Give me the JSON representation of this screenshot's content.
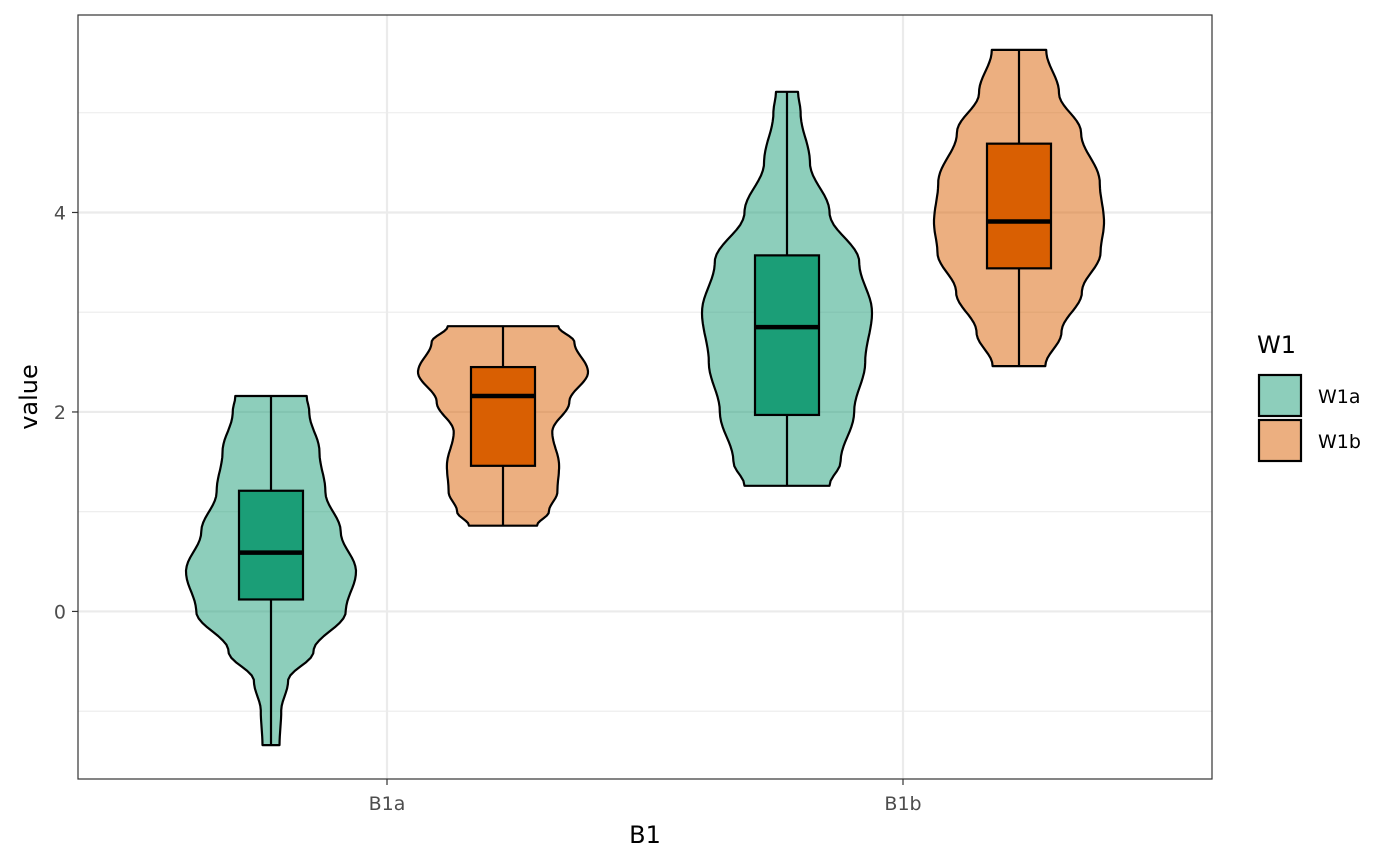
{
  "chart_data": {
    "type": "violin",
    "xlabel": "B1",
    "ylabel": "value",
    "categories": [
      "B1a",
      "B1b"
    ],
    "ylim": [
      -1.68,
      5.98
    ],
    "yticks": [
      0,
      2,
      4
    ],
    "ytick_labels": [
      "0",
      "2",
      "4"
    ],
    "grid": true,
    "legend": {
      "title": "W1",
      "position": "right",
      "items": [
        "W1a",
        "W1b"
      ]
    },
    "colors": {
      "W1a": "#1b9e77",
      "W1b": "#d95f02"
    },
    "series": [
      {
        "name": "W1a",
        "groups": [
          {
            "category": "B1a",
            "min": -1.34,
            "q1": 0.12,
            "median": 0.59,
            "q3": 1.21,
            "max": 2.16,
            "density": [
              [
                -1.34,
                0.1
              ],
              [
                -1.0,
                0.12
              ],
              [
                -0.7,
                0.2
              ],
              [
                -0.4,
                0.5
              ],
              [
                0.0,
                0.88
              ],
              [
                0.4,
                1.0
              ],
              [
                0.8,
                0.82
              ],
              [
                1.2,
                0.64
              ],
              [
                1.6,
                0.57
              ],
              [
                2.0,
                0.45
              ],
              [
                2.16,
                0.42
              ]
            ]
          },
          {
            "category": "B1b",
            "min": 1.26,
            "q1": 1.97,
            "median": 2.85,
            "q3": 3.57,
            "max": 5.21,
            "density": [
              [
                1.26,
                0.5
              ],
              [
                1.5,
                0.63
              ],
              [
                2.0,
                0.79
              ],
              [
                2.5,
                0.92
              ],
              [
                3.0,
                1.0
              ],
              [
                3.5,
                0.85
              ],
              [
                4.0,
                0.5
              ],
              [
                4.5,
                0.27
              ],
              [
                5.0,
                0.16
              ],
              [
                5.21,
                0.13
              ]
            ]
          }
        ]
      },
      {
        "name": "W1b",
        "groups": [
          {
            "category": "B1a",
            "min": 0.86,
            "q1": 1.46,
            "median": 2.16,
            "q3": 2.45,
            "max": 2.86,
            "density": [
              [
                0.86,
                0.4
              ],
              [
                1.0,
                0.54
              ],
              [
                1.2,
                0.64
              ],
              [
                1.46,
                0.66
              ],
              [
                1.8,
                0.58
              ],
              [
                2.1,
                0.78
              ],
              [
                2.4,
                1.0
              ],
              [
                2.7,
                0.84
              ],
              [
                2.86,
                0.65
              ]
            ]
          },
          {
            "category": "B1b",
            "min": 2.46,
            "q1": 3.44,
            "median": 3.91,
            "q3": 4.69,
            "max": 5.63,
            "density": [
              [
                2.46,
                0.31
              ],
              [
                2.8,
                0.5
              ],
              [
                3.2,
                0.74
              ],
              [
                3.6,
                0.96
              ],
              [
                3.9,
                1.0
              ],
              [
                4.3,
                0.95
              ],
              [
                4.8,
                0.73
              ],
              [
                5.2,
                0.47
              ],
              [
                5.63,
                0.32
              ]
            ]
          }
        ]
      }
    ]
  }
}
